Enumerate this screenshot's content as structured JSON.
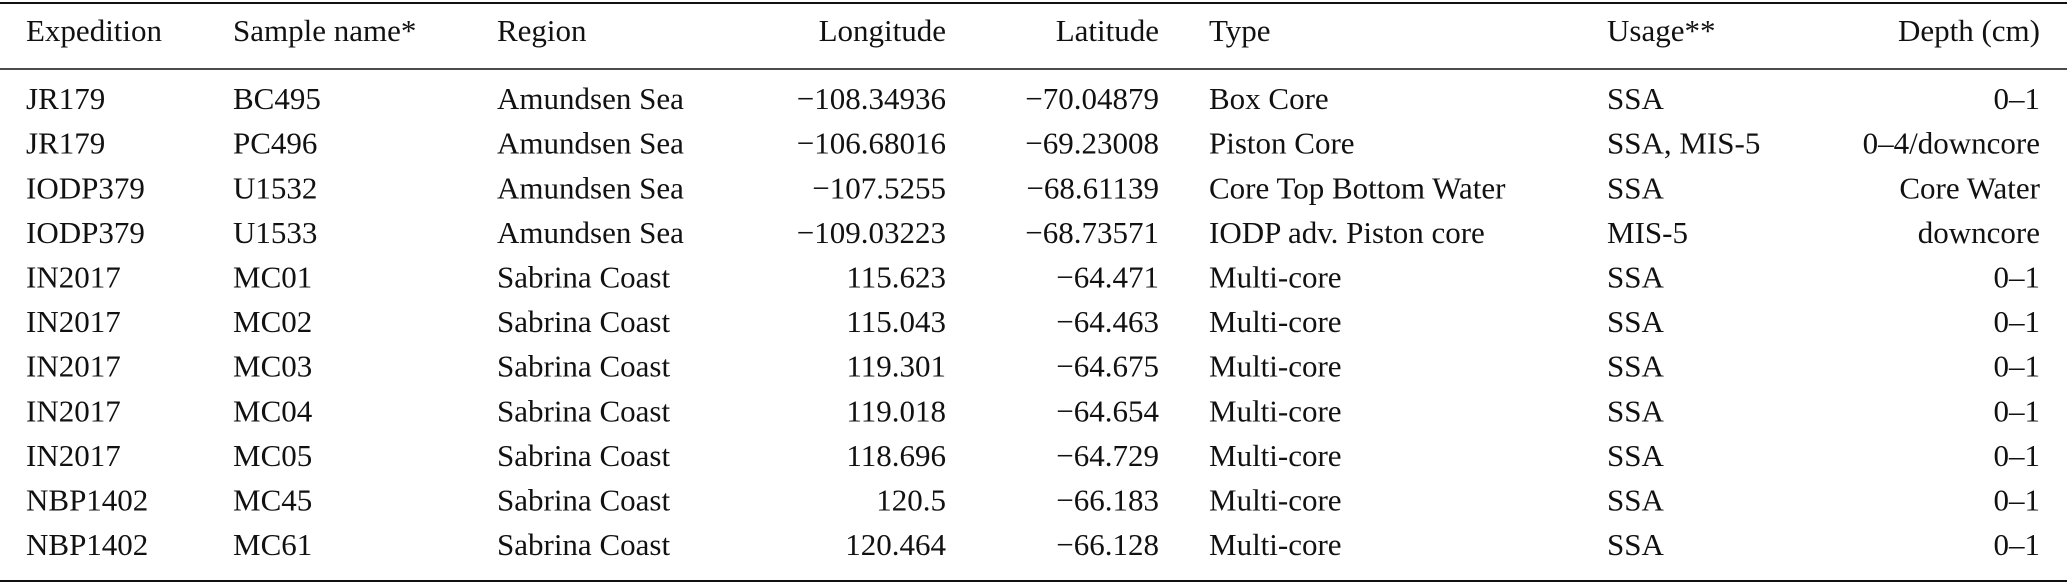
{
  "table": {
    "header": [
      "Expedition",
      "Sample name*",
      "Region",
      "Longitude",
      "Latitude",
      "Type",
      "Usage**",
      "Depth (cm)"
    ],
    "rows": [
      [
        "JR179",
        "BC495",
        "Amundsen Sea",
        "−108.34936",
        "−70.04879",
        "Box Core",
        "SSA",
        "0–1"
      ],
      [
        "JR179",
        "PC496",
        "Amundsen Sea",
        "−106.68016",
        "−69.23008",
        "Piston Core",
        "SSA, MIS-5",
        "0–4/downcore"
      ],
      [
        "IODP379",
        "U1532",
        "Amundsen Sea",
        "−107.5255",
        "−68.61139",
        "Core Top Bottom Water",
        "SSA",
        "Core Water"
      ],
      [
        "IODP379",
        "U1533",
        "Amundsen Sea",
        "−109.03223",
        "−68.73571",
        "IODP adv. Piston core",
        "MIS-5",
        "downcore"
      ],
      [
        "IN2017",
        "MC01",
        "Sabrina Coast",
        "115.623",
        "−64.471",
        "Multi-core",
        "SSA",
        "0–1"
      ],
      [
        "IN2017",
        "MC02",
        "Sabrina Coast",
        "115.043",
        "−64.463",
        "Multi-core",
        "SSA",
        "0–1"
      ],
      [
        "IN2017",
        "MC03",
        "Sabrina Coast",
        "119.301",
        "−64.675",
        "Multi-core",
        "SSA",
        "0–1"
      ],
      [
        "IN2017",
        "MC04",
        "Sabrina Coast",
        "119.018",
        "−64.654",
        "Multi-core",
        "SSA",
        "0–1"
      ],
      [
        "IN2017",
        "MC05",
        "Sabrina Coast",
        "118.696",
        "−64.729",
        "Multi-core",
        "SSA",
        "0–1"
      ],
      [
        "NBP1402",
        "MC45",
        "Sabrina Coast",
        "120.5",
        "−66.183",
        "Multi-core",
        "SSA",
        "0–1"
      ],
      [
        "NBP1402",
        "MC61",
        "Sabrina Coast",
        "120.464",
        "−66.128",
        "Multi-core",
        "SSA",
        "0–1"
      ]
    ]
  }
}
